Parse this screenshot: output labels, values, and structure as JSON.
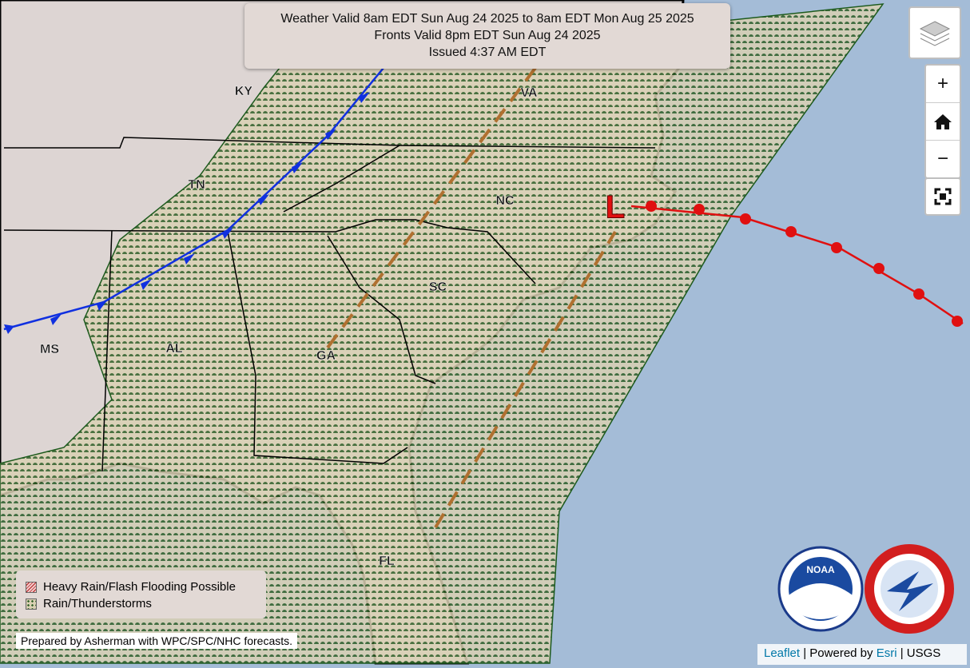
{
  "header": {
    "lines": [
      "Weather Valid 8am EDT Sun Aug 24 2025 to 8am EDT Mon Aug 25 2025",
      "Fronts Valid 8pm EDT Sun Aug 24 2025",
      "Issued 4:37 AM EDT"
    ]
  },
  "state_labels": [
    "KY",
    "VA",
    "TN",
    "NC",
    "SC",
    "MS",
    "AL",
    "GA",
    "FL"
  ],
  "low_label": "L",
  "zoom_controls": {
    "zoom_in": "+",
    "zoom_out": "−"
  },
  "legend": {
    "items": [
      "Heavy Rain/Flash Flooding Possible",
      "Rain/Thunderstorms"
    ]
  },
  "credit": "Prepared by Asherman with WPC/SPC/NHC forecasts.",
  "attribution": {
    "leaflet": "Leaflet",
    "separator": "|",
    "powered_by": "Powered by",
    "esri": "Esri",
    "usgs": "USGS"
  },
  "logos": {
    "noaa": "NOAA"
  }
}
